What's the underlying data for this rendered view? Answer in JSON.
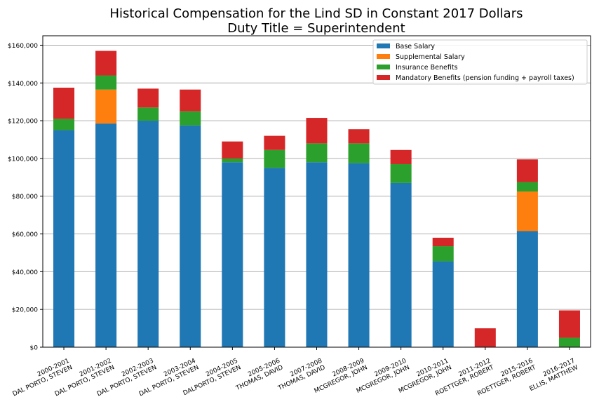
{
  "chart_data": {
    "type": "bar",
    "stacked": true,
    "title": "Historical Compensation for the Lind SD in Constant 2017 Dollars",
    "subtitle": "Duty Title = Superintendent",
    "xlabel": "",
    "ylabel": "",
    "ylim": [
      0,
      165000
    ],
    "yticks": [
      0,
      20000,
      40000,
      60000,
      80000,
      100000,
      120000,
      140000,
      160000
    ],
    "ytick_labels": [
      "$0",
      "$20,000",
      "$40,000",
      "$60,000",
      "$80,000",
      "$100,000",
      "$120,000",
      "$140,000",
      "$160,000"
    ],
    "grid": "horizontal",
    "legend_position": "top-right",
    "categories": [
      [
        "2000-2001",
        "DAL PORTO, STEVEN"
      ],
      [
        "2001-2002",
        "DAL PORTO, STEVEN"
      ],
      [
        "2002-2003",
        "DAL PORTO, STEVEN"
      ],
      [
        "2003-2004",
        "DAL PORTO, STEVEN"
      ],
      [
        "2004-2005",
        "DALPORTO, STEVEN"
      ],
      [
        "2005-2006",
        "THOMAS, DAVID"
      ],
      [
        "2007-2008",
        "THOMAS, DAVID"
      ],
      [
        "2008-2009",
        "MCGREGOR, JOHN"
      ],
      [
        "2009-2010",
        "MCGREGOR, JOHN"
      ],
      [
        "2010-2011",
        "MCGREGOR, JOHN"
      ],
      [
        "2011-2012",
        "ROETTGER, ROBERT"
      ],
      [
        "2015-2016",
        "ROETTGER, ROBERT"
      ],
      [
        "2016-2017",
        "ELLIS, MATTHEW"
      ]
    ],
    "series": [
      {
        "name": "Base Salary",
        "color": "#1f77b4",
        "values": [
          115000,
          118500,
          120000,
          117500,
          98000,
          95000,
          98000,
          97500,
          87000,
          45500,
          0,
          61500,
          0
        ]
      },
      {
        "name": "Supplemental Salary",
        "color": "#ff7f0e",
        "values": [
          0,
          18000,
          0,
          0,
          0,
          0,
          0,
          0,
          0,
          0,
          0,
          21000,
          0
        ]
      },
      {
        "name": "Insurance Benefits",
        "color": "#2ca02c",
        "values": [
          6000,
          7500,
          7000,
          7500,
          2000,
          9500,
          10000,
          10500,
          10000,
          8000,
          0,
          5000,
          5000
        ]
      },
      {
        "name": "Mandatory Benefits (pension funding + payroll taxes)",
        "color": "#d62728",
        "values": [
          16500,
          13000,
          10000,
          11500,
          9000,
          7500,
          13500,
          7500,
          7500,
          4500,
          10000,
          12000,
          14500
        ]
      }
    ]
  }
}
